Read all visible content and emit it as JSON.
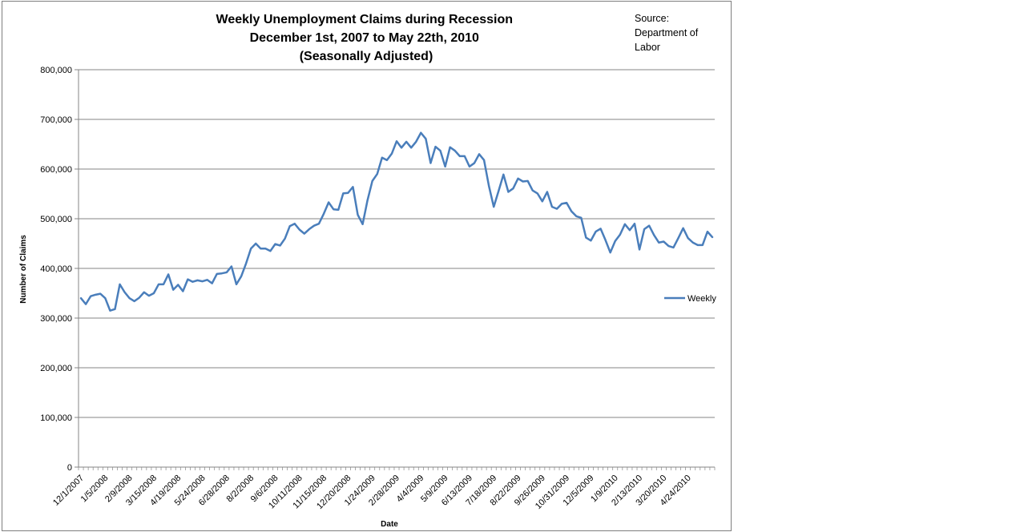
{
  "chart_data": {
    "type": "line",
    "title_lines": [
      "Weekly Unemployment Claims during Recession",
      "December 1st, 2007 to  May 22th, 2010",
      "(Seasonally Adjusted)"
    ],
    "source_lines": [
      "Source:",
      "Department of",
      "Labor"
    ],
    "xlabel": "Date",
    "ylabel": "Number of Claims",
    "ylim": [
      0,
      800000
    ],
    "y_ticks": [
      0,
      100000,
      200000,
      300000,
      400000,
      500000,
      600000,
      700000,
      800000
    ],
    "y_tick_labels": [
      "0",
      "100,000",
      "200,000",
      "300,000",
      "400,000",
      "500,000",
      "600,000",
      "700,000",
      "800,000"
    ],
    "x_tick_labels": [
      "12/1/2007",
      "1/5/2008",
      "2/9/2008",
      "3/15/2008",
      "4/19/2008",
      "5/24/2008",
      "6/28/2008",
      "8/2/2008",
      "9/6/2008",
      "10/11/2008",
      "11/15/2008",
      "12/20/2008",
      "1/24/2009",
      "2/28/2009",
      "4/4/2009",
      "5/9/2009",
      "6/13/2009",
      "7/18/2009",
      "8/22/2009",
      "9/26/2009",
      "10/31/2009",
      "12/5/2009",
      "1/9/2010",
      "2/13/2010",
      "3/20/2010",
      "4/24/2010"
    ],
    "x_tick_step_weeks": 5,
    "grid": true,
    "legend_position": "right",
    "series": [
      {
        "name": "Weekly",
        "color": "#4a7ebb",
        "values": [
          340000,
          328000,
          344000,
          347000,
          349000,
          340000,
          315000,
          318000,
          368000,
          352000,
          340000,
          334000,
          341000,
          352000,
          345000,
          350000,
          368000,
          368000,
          388000,
          357000,
          367000,
          354000,
          378000,
          373000,
          376000,
          374000,
          377000,
          370000,
          389000,
          390000,
          392000,
          404000,
          368000,
          384000,
          410000,
          440000,
          450000,
          440000,
          440000,
          435000,
          449000,
          446000,
          460000,
          485000,
          490000,
          478000,
          470000,
          479000,
          486000,
          490000,
          510000,
          533000,
          519000,
          518000,
          551000,
          552000,
          564000,
          508000,
          489000,
          537000,
          576000,
          590000,
          623000,
          618000,
          631000,
          656000,
          643000,
          655000,
          643000,
          655000,
          673000,
          661000,
          612000,
          645000,
          637000,
          605000,
          644000,
          637000,
          626000,
          626000,
          605000,
          612000,
          630000,
          618000,
          566000,
          524000,
          556000,
          589000,
          554000,
          561000,
          581000,
          575000,
          576000,
          557000,
          551000,
          535000,
          554000,
          524000,
          520000,
          530000,
          532000,
          515000,
          505000,
          502000,
          462000,
          456000,
          474000,
          480000,
          457000,
          432000,
          455000,
          468000,
          489000,
          477000,
          490000,
          438000,
          479000,
          486000,
          467000,
          452000,
          454000,
          445000,
          442000,
          461000,
          481000,
          461000,
          452000,
          447000,
          447000,
          474000,
          463000
        ]
      }
    ]
  }
}
